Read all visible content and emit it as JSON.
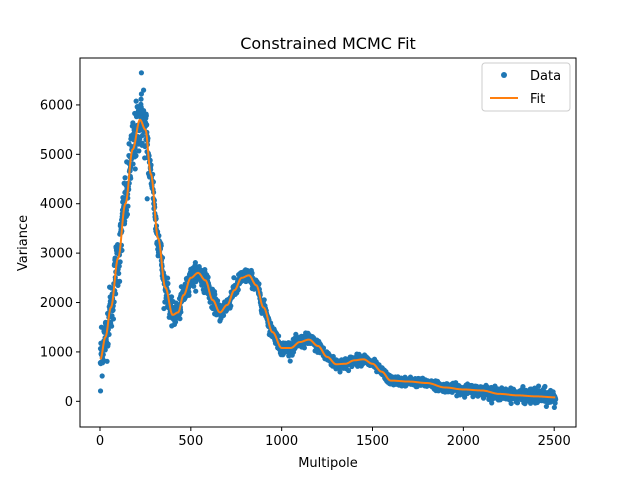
{
  "chart_data": {
    "type": "scatter",
    "title": "Constrained MCMC Fit",
    "xlabel": "Multipole",
    "ylabel": "Variance",
    "xlim": [
      -110,
      2620
    ],
    "ylim": [
      -520,
      6950
    ],
    "xticks": [
      0,
      500,
      1000,
      1500,
      2000,
      2500
    ],
    "yticks": [
      0,
      1000,
      2000,
      3000,
      4000,
      5000,
      6000
    ],
    "legend": {
      "placement": "upper-right",
      "entries": [
        "Data",
        "Fit"
      ]
    },
    "colors": {
      "data": "#1f77b4",
      "fit": "#ff7f0e"
    },
    "series": [
      {
        "name": "Data",
        "kind": "scatter",
        "x_range": [
          2,
          2508
        ],
        "noise_levels": [
          [
            0,
            300
          ],
          [
            200,
            430
          ],
          [
            300,
            220
          ],
          [
            450,
            140
          ],
          [
            900,
            90
          ],
          [
            1800,
            55
          ],
          [
            2200,
            75
          ],
          [
            2508,
            110
          ]
        ],
        "outliers": [
          [
            3,
            210
          ],
          [
            8,
            1500
          ],
          [
            228,
            6650
          ],
          [
            240,
            6300
          ],
          [
            260,
            4100
          ]
        ]
      },
      {
        "name": "Fit",
        "kind": "line",
        "x": [
          2,
          30,
          60,
          100,
          140,
          180,
          220,
          250,
          280,
          320,
          360,
          400,
          430,
          460,
          500,
          540,
          580,
          620,
          660,
          700,
          740,
          780,
          820,
          860,
          900,
          950,
          1000,
          1050,
          1100,
          1150,
          1200,
          1250,
          1300,
          1350,
          1400,
          1450,
          1500,
          1550,
          1600,
          1700,
          1800,
          1900,
          2000,
          2100,
          2200,
          2300,
          2400,
          2508
        ],
        "y": [
          850,
          1300,
          1900,
          2900,
          4000,
          5100,
          5700,
          5500,
          4600,
          3300,
          2300,
          1750,
          1800,
          2150,
          2500,
          2600,
          2450,
          2050,
          1800,
          1950,
          2250,
          2500,
          2550,
          2350,
          1900,
          1400,
          1080,
          1080,
          1200,
          1250,
          1120,
          900,
          750,
          760,
          830,
          850,
          760,
          600,
          420,
          400,
          370,
          280,
          240,
          220,
          150,
          120,
          100,
          80
        ]
      }
    ]
  }
}
